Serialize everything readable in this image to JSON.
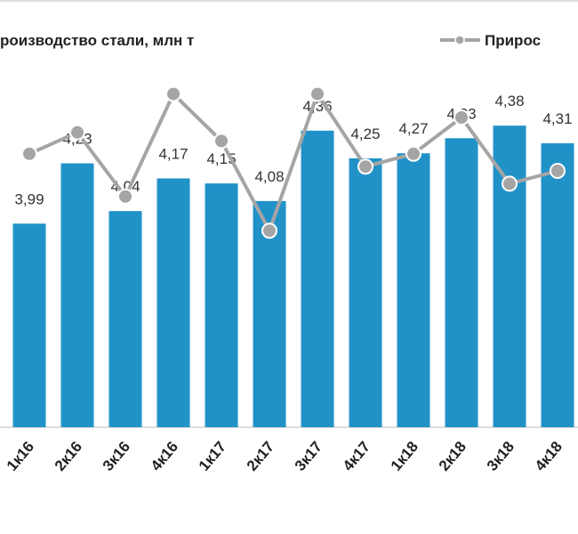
{
  "chart_data": {
    "type": "bar+line",
    "categories": [
      "1к16",
      "2к16",
      "3к16",
      "4к16",
      "1к17",
      "2к17",
      "3к17",
      "4к17",
      "1к18",
      "2к18",
      "3к18",
      "4к18"
    ],
    "series": [
      {
        "name": "роизводство стали, млн т",
        "type": "bar",
        "color": "#2192c8",
        "values": [
          3.99,
          4.23,
          4.04,
          4.17,
          4.15,
          4.08,
          4.36,
          4.25,
          4.27,
          4.33,
          4.38,
          4.31
        ],
        "value_labels": [
          "3,99",
          "4,23",
          "4,04",
          "4,17",
          "4,15",
          "4,08",
          "4,36",
          "4,25",
          "4,27",
          "4,33",
          "4,38",
          "4,31"
        ]
      },
      {
        "name": "Прирос",
        "type": "line",
        "axis": "y2",
        "color": "#a5a5a5",
        "values": [
          64,
          69,
          54,
          78,
          67,
          46,
          78,
          61,
          64,
          72.5,
          57,
          60
        ]
      }
    ],
    "ylim": [
      3.18,
      4.88
    ],
    "y2lim": [
      0,
      100
    ]
  }
}
